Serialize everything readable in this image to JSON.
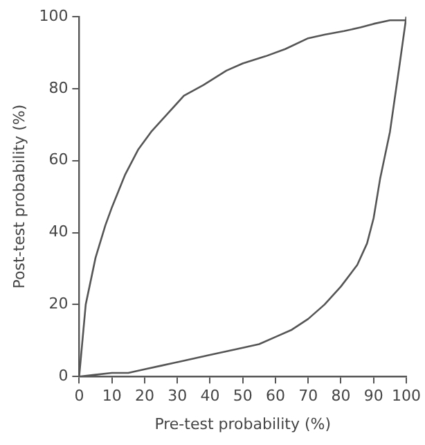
{
  "chart_data": {
    "type": "line",
    "xlabel": "Pre-test probability (%)",
    "ylabel": "Post-test probability (%)",
    "xlim": [
      0,
      100
    ],
    "ylim": [
      0,
      100
    ],
    "xticks": [
      0,
      10,
      20,
      30,
      40,
      50,
      60,
      70,
      80,
      90,
      100
    ],
    "yticks": [
      0,
      20,
      40,
      60,
      80,
      100
    ],
    "grid": false,
    "legend": false,
    "marker": "none",
    "line_style": "solid",
    "series": [
      {
        "color": "#555555",
        "x": [
          0,
          2,
          5,
          8,
          10,
          14,
          18,
          22,
          27,
          32,
          38,
          45,
          50,
          57,
          63,
          70,
          75,
          81,
          86,
          90,
          95,
          100
        ],
        "values": [
          0,
          20,
          33,
          42,
          47,
          56,
          63,
          68,
          73,
          78,
          81,
          85,
          87,
          89,
          91,
          94,
          95,
          96,
          97,
          98,
          99,
          99
        ]
      },
      {
        "color": "#555555",
        "x": [
          0,
          5,
          10,
          15,
          20,
          25,
          30,
          40,
          50,
          55,
          60,
          65,
          70,
          75,
          80,
          85,
          88,
          90,
          92,
          95,
          98,
          100
        ],
        "values": [
          0,
          0.5,
          1,
          1,
          2,
          3,
          4,
          6,
          8,
          9,
          11,
          13,
          16,
          20,
          25,
          31,
          37,
          44,
          55,
          68,
          87,
          100
        ]
      }
    ]
  }
}
